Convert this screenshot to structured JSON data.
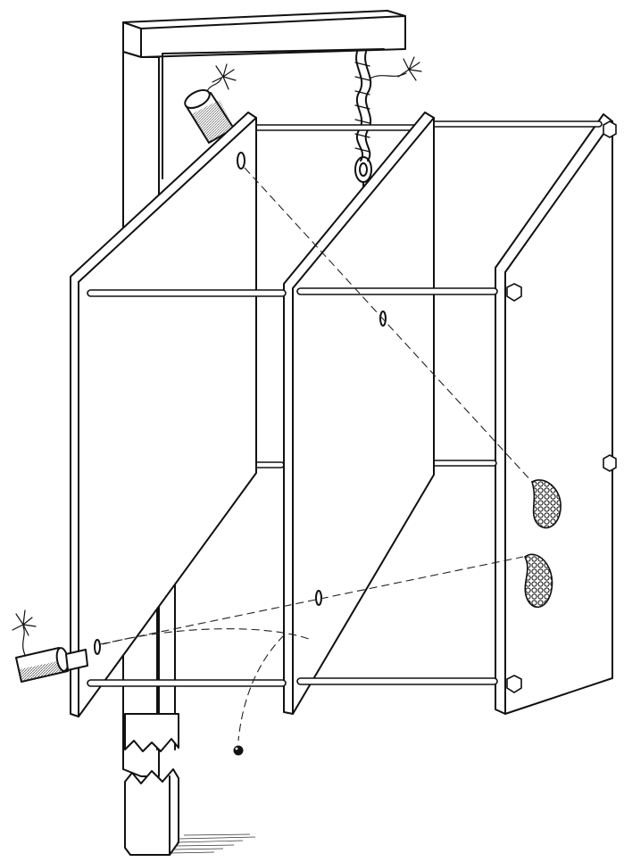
{
  "figure": {
    "ink_color": "#111111",
    "paper_color": "#ffffff",
    "icons": [
      "overhead-beam",
      "support-post",
      "rope-suspension",
      "upper-gun",
      "lower-gun",
      "front-plate",
      "middle-plate",
      "rear-plate",
      "tie-rods",
      "bolt-heads",
      "bullet-trajectory",
      "deflected-trajectory",
      "fallen-pellet",
      "bullet-upper",
      "bullet-lower",
      "broken-post-stump"
    ]
  }
}
